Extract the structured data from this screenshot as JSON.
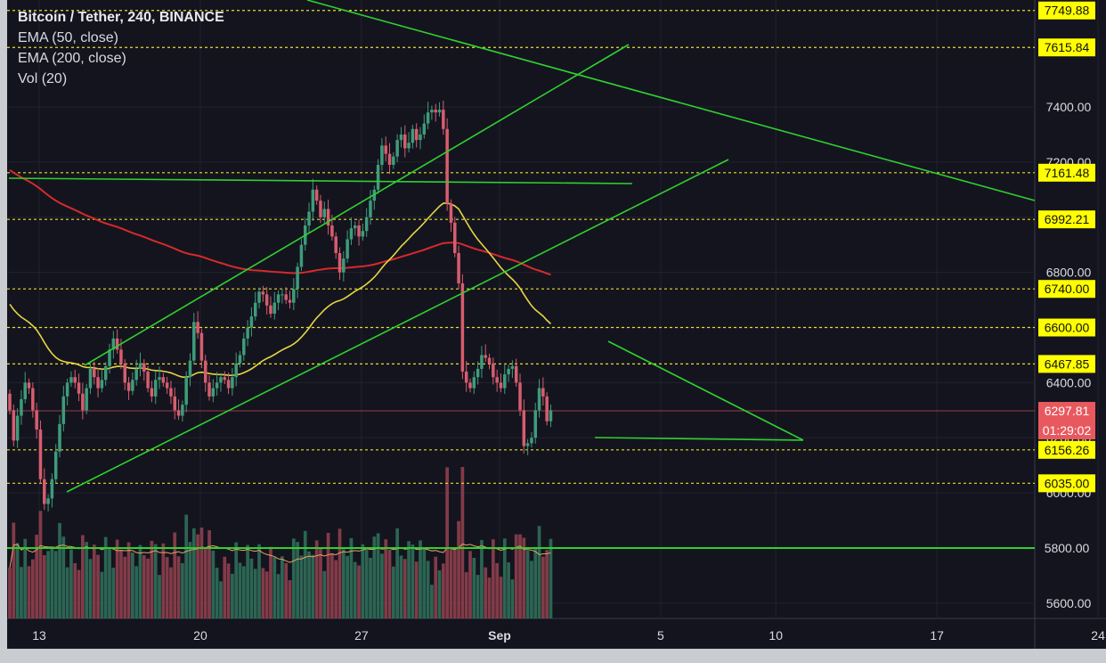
{
  "title": "Bitcoin / Tether, 240, BINANCE",
  "indicators": [
    "EMA (50, close)",
    "EMA (200, close)",
    "Vol (20)"
  ],
  "colors": {
    "background": "#14141f",
    "candle_up": "#3e9c7a",
    "candle_down": "#d75d6e",
    "ema50": "#e6d642",
    "ema200": "#d62a2a",
    "level_line": "#e8de2c",
    "trend": "#2fd12f",
    "price_tag": "#e8595f",
    "label_bg": "#ffff00"
  },
  "chart_data": {
    "type": "candlestick",
    "title": "Bitcoin / Tether, 240, BINANCE",
    "ylim": [
      5520,
      7800
    ],
    "y_ticks": [
      5600,
      5800,
      6000,
      6200,
      6400,
      6600,
      6800,
      7000,
      7200,
      7400
    ],
    "x_ticks": [
      "13",
      "20",
      "27",
      "Sep",
      "5",
      "10",
      "17",
      "24"
    ],
    "x_tick_days": [
      0,
      7,
      14,
      20,
      27,
      32,
      39,
      46
    ],
    "horizontal_levels": [
      7749.88,
      7615.84,
      7161.48,
      6992.21,
      6740.0,
      6600.0,
      6467.85,
      6156.26,
      6035.0
    ],
    "support_line": 5800.0,
    "current_price": "6297.81",
    "countdown": "01:29:02",
    "closes": [
      6300,
      6190,
      6280,
      6340,
      6400,
      6380,
      6300,
      6230,
      6050,
      5960,
      5980,
      6050,
      6150,
      6250,
      6350,
      6400,
      6420,
      6400,
      6360,
      6300,
      6380,
      6450,
      6420,
      6380,
      6410,
      6460,
      6520,
      6560,
      6520,
      6470,
      6400,
      6370,
      6410,
      6450,
      6470,
      6440,
      6380,
      6350,
      6410,
      6420,
      6400,
      6380,
      6350,
      6300,
      6280,
      6320,
      6420,
      6480,
      6620,
      6580,
      6480,
      6400,
      6350,
      6380,
      6400,
      6420,
      6410,
      6380,
      6420,
      6470,
      6500,
      6560,
      6600,
      6640,
      6690,
      6730,
      6720,
      6680,
      6650,
      6690,
      6720,
      6720,
      6700,
      6690,
      6740,
      6820,
      6900,
      6970,
      7020,
      7100,
      7060,
      7000,
      7030,
      6970,
      6930,
      6870,
      6800,
      6850,
      6920,
      6960,
      6970,
      6930,
      6950,
      7000,
      7060,
      7100,
      7190,
      7260,
      7230,
      7190,
      7220,
      7280,
      7300,
      7250,
      7270,
      7320,
      7280,
      7300,
      7340,
      7380,
      7390,
      7380,
      7390,
      7320,
      7050,
      6980,
      6870,
      6760,
      6440,
      6400,
      6380,
      6420,
      6450,
      6500,
      6490,
      6470,
      6420,
      6400,
      6380,
      6430,
      6450,
      6460,
      6400,
      6300,
      6170,
      6180,
      6200,
      6300,
      6380,
      6350,
      6260,
      6300
    ]
  }
}
